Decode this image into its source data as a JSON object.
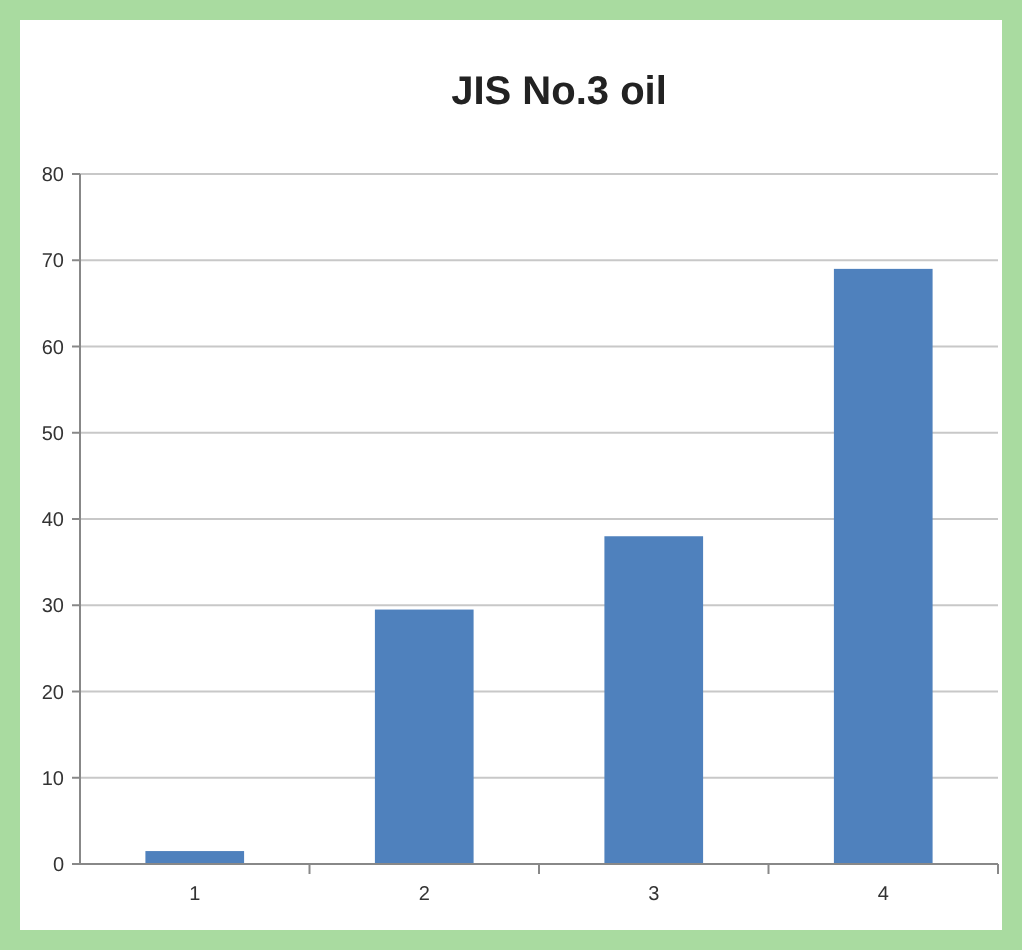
{
  "chart_data": {
    "type": "bar",
    "title": "JIS No.3 oil",
    "categories": [
      "1",
      "2",
      "3",
      "4"
    ],
    "values": [
      1.5,
      29.5,
      38,
      69
    ],
    "color": "#4f81bd",
    "ylim": [
      0,
      80
    ],
    "yticks": [
      0,
      10,
      20,
      30,
      40,
      50,
      60,
      70,
      80
    ],
    "grid": "y"
  }
}
